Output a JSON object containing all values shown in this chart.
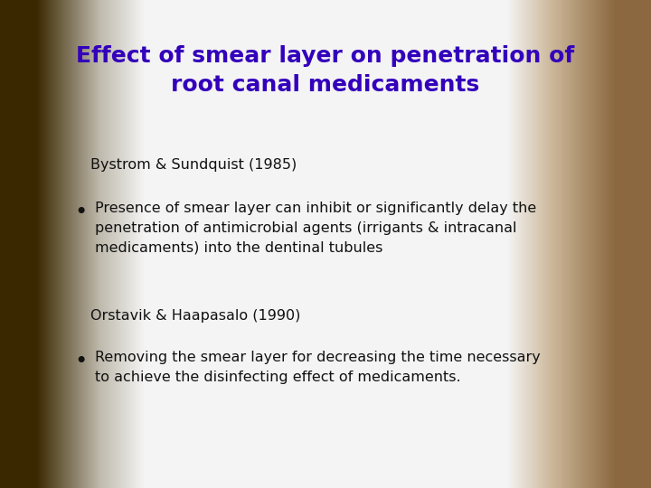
{
  "title_line1": "Effect of smear layer on penetration of",
  "title_line2": "root canal medicaments",
  "title_color": "#3300BB",
  "title_fontsize": 18,
  "ref1": "Bystrom & Sundquist (1985)",
  "ref2": "Orstavik & Haapasalo (1990)",
  "ref_fontsize": 11.5,
  "bullet1": "Presence of smear layer can inhibit or significantly delay the\npenetration of antimicrobial agents (irrigants & intracanal\nmedicaments) into the dentinal tubules",
  "bullet2": "Removing the smear layer for decreasing the time necessary\nto achieve the disinfecting effect of medicaments.",
  "bullet_fontsize": 11.5,
  "bullet_color": "#111111",
  "bg_center": "#f5f5f5",
  "bg_left_edge": "#3a2800",
  "bg_right_edge": "#8b6840"
}
